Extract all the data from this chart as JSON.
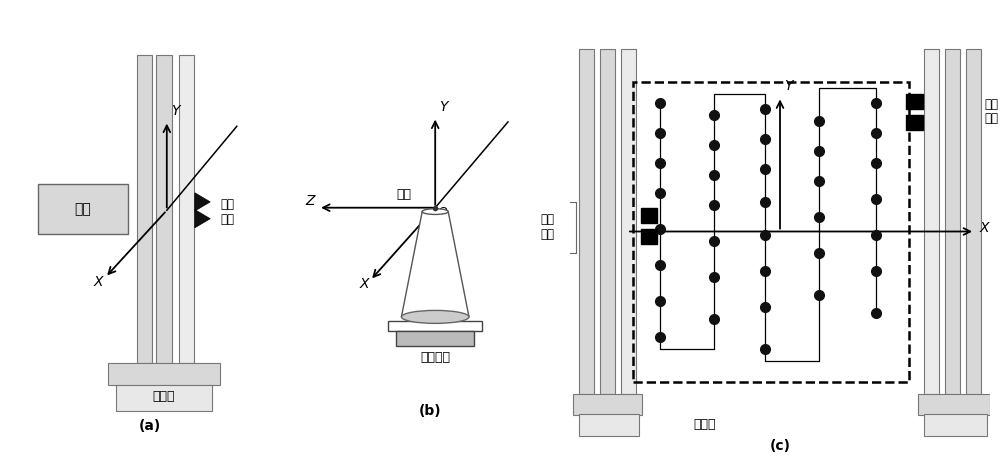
{
  "fig_width": 10.0,
  "fig_height": 4.57,
  "bg_color": "#ffffff",
  "label_a": "(a)",
  "label_b": "(b)",
  "label_c": "(c)",
  "gray_light": "#d8d8d8",
  "gray_med": "#b0b0b0",
  "gray_dark": "#888888",
  "black": "#000000",
  "white": "#ffffff"
}
